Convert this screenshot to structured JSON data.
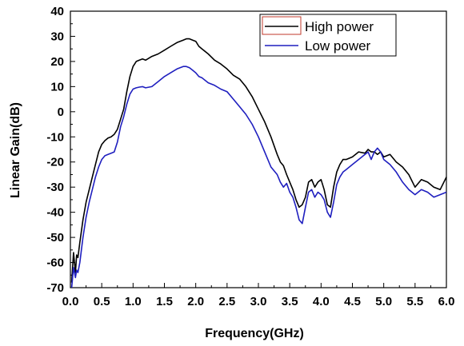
{
  "chart_data": {
    "type": "line",
    "xlabel": "Frequency(GHz)",
    "ylabel": "Linear Gain(dB)",
    "xlim": [
      0,
      6
    ],
    "ylim": [
      -70,
      40
    ],
    "xticks": [
      0.0,
      0.5,
      1.0,
      1.5,
      2.0,
      2.5,
      3.0,
      3.5,
      4.0,
      4.5,
      5.0,
      5.5,
      6.0
    ],
    "xtick_labels": [
      "0.0",
      "0.5",
      "1.0",
      "1.5",
      "2.0",
      "2.5",
      "3.0",
      "3.5",
      "4.0",
      "4.5",
      "5.0",
      "5.5",
      "6.0"
    ],
    "yticks": [
      -70,
      -60,
      -50,
      -40,
      -30,
      -20,
      -10,
      0,
      10,
      20,
      30,
      40
    ],
    "ytick_labels": [
      "-70",
      "-60",
      "-50",
      "-40",
      "-30",
      "-20",
      "-10",
      "0",
      "10",
      "20",
      "30",
      "40"
    ],
    "grid": false,
    "legend_position": "top-right",
    "series": [
      {
        "name": "High power",
        "color": "#000000",
        "x": [
          0.02,
          0.05,
          0.08,
          0.1,
          0.12,
          0.15,
          0.2,
          0.25,
          0.3,
          0.35,
          0.4,
          0.45,
          0.5,
          0.55,
          0.6,
          0.65,
          0.7,
          0.75,
          0.8,
          0.85,
          0.9,
          0.95,
          1.0,
          1.05,
          1.1,
          1.15,
          1.2,
          1.3,
          1.4,
          1.5,
          1.6,
          1.7,
          1.8,
          1.85,
          1.9,
          1.95,
          2.0,
          2.05,
          2.1,
          2.2,
          2.3,
          2.4,
          2.5,
          2.6,
          2.7,
          2.8,
          2.9,
          3.0,
          3.1,
          3.2,
          3.3,
          3.35,
          3.4,
          3.45,
          3.5,
          3.55,
          3.6,
          3.65,
          3.7,
          3.75,
          3.8,
          3.85,
          3.9,
          3.95,
          4.0,
          4.05,
          4.1,
          4.15,
          4.2,
          4.25,
          4.3,
          4.35,
          4.4,
          4.5,
          4.6,
          4.7,
          4.75,
          4.8,
          4.85,
          4.9,
          4.95,
          5.0,
          5.1,
          5.2,
          5.3,
          5.4,
          5.5,
          5.6,
          5.7,
          5.8,
          5.9,
          6.0
        ],
        "y": [
          -68,
          -56,
          -64,
          -57,
          -58,
          -52,
          -43,
          -36,
          -31,
          -26,
          -21,
          -16,
          -13,
          -11.5,
          -10.5,
          -10,
          -9,
          -7,
          -3,
          1,
          8,
          14,
          18,
          20,
          20.5,
          21,
          20.5,
          22,
          23,
          24.5,
          26,
          27.5,
          28.5,
          29,
          29,
          28.5,
          28,
          26,
          25,
          23,
          20.5,
          19,
          17,
          14.5,
          13,
          10,
          6,
          1,
          -4,
          -10,
          -17,
          -20,
          -21.5,
          -25,
          -28,
          -31,
          -35,
          -38,
          -37,
          -34,
          -28,
          -27,
          -30,
          -28,
          -27,
          -31,
          -37,
          -38,
          -30,
          -24,
          -21,
          -19,
          -19,
          -18,
          -16,
          -16.5,
          -15,
          -16,
          -16,
          -17,
          -16,
          -18,
          -17,
          -20,
          -22,
          -25,
          -30,
          -27,
          -28,
          -30,
          -31,
          -26
        ]
      },
      {
        "name": "Low power",
        "color": "#1f1fbf",
        "x": [
          0.02,
          0.05,
          0.08,
          0.1,
          0.12,
          0.15,
          0.2,
          0.25,
          0.3,
          0.35,
          0.4,
          0.45,
          0.5,
          0.55,
          0.6,
          0.65,
          0.7,
          0.75,
          0.8,
          0.85,
          0.9,
          0.95,
          1.0,
          1.05,
          1.1,
          1.15,
          1.2,
          1.3,
          1.4,
          1.5,
          1.6,
          1.7,
          1.8,
          1.85,
          1.9,
          1.95,
          2.0,
          2.05,
          2.1,
          2.2,
          2.3,
          2.4,
          2.5,
          2.6,
          2.7,
          2.8,
          2.9,
          3.0,
          3.1,
          3.2,
          3.3,
          3.35,
          3.4,
          3.45,
          3.5,
          3.55,
          3.6,
          3.65,
          3.7,
          3.75,
          3.8,
          3.85,
          3.9,
          3.95,
          4.0,
          4.05,
          4.1,
          4.15,
          4.2,
          4.25,
          4.3,
          4.35,
          4.4,
          4.5,
          4.6,
          4.7,
          4.75,
          4.8,
          4.85,
          4.9,
          4.95,
          5.0,
          5.1,
          5.2,
          5.3,
          5.4,
          5.5,
          5.6,
          5.7,
          5.8,
          5.9,
          6.0
        ],
        "y": [
          -70,
          -62,
          -66,
          -63,
          -64,
          -60,
          -50,
          -42,
          -36,
          -31,
          -26,
          -22,
          -19,
          -17.5,
          -17,
          -16.5,
          -16,
          -12,
          -6,
          -2,
          3,
          7,
          9,
          9.5,
          9.8,
          10,
          9.5,
          10,
          12,
          14,
          15.5,
          17,
          18,
          18,
          17.5,
          16.5,
          15.5,
          14,
          13.5,
          11.5,
          10.5,
          9,
          8,
          5,
          2,
          -1,
          -5,
          -10,
          -16,
          -22,
          -25,
          -28,
          -30,
          -28.5,
          -32,
          -34,
          -38,
          -43,
          -44.5,
          -38,
          -32,
          -31,
          -34,
          -32,
          -33,
          -35,
          -40,
          -42,
          -36,
          -29,
          -26,
          -24,
          -23,
          -21,
          -19,
          -17,
          -16,
          -19,
          -16,
          -14.5,
          -16,
          -19,
          -21,
          -24,
          -28,
          -31,
          -33,
          -31,
          -32,
          -34,
          -33,
          -32
        ]
      }
    ]
  }
}
